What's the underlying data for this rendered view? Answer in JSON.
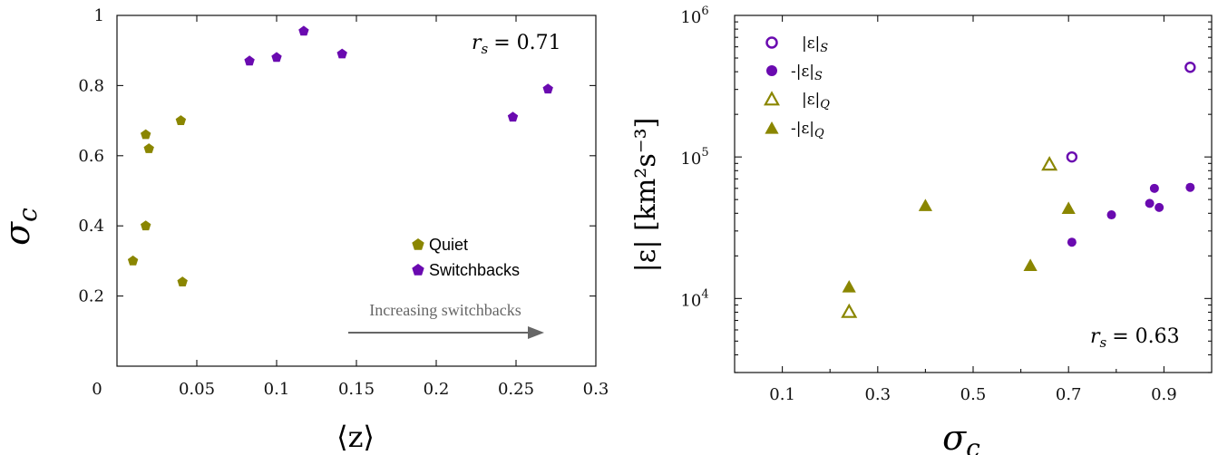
{
  "colors": {
    "quiet": "#8a8600",
    "switchbacks": "#6a0ab0",
    "arrow": "#666666",
    "axis": "#111111"
  },
  "chart_data": [
    {
      "type": "scatter",
      "xlabel": "⟨z⟩",
      "ylabel": "σ",
      "ylabel_sub": "c",
      "xlim": [
        0,
        0.3
      ],
      "ylim": [
        0,
        1
      ],
      "x_ticks": [
        "0",
        "0.05",
        "0.1",
        "0.15",
        "0.2",
        "0.25",
        "0.3"
      ],
      "y_ticks": [
        "0.2",
        "0.4",
        "0.6",
        "0.8",
        "1"
      ],
      "annotation_rs": "r",
      "annotation_rs_sub": "s",
      "annotation_rs_value": "= 0.71",
      "arrow_label": "Increasing switchbacks",
      "legend_position": "middle-right",
      "series": [
        {
          "name": "Quiet",
          "marker": "pentagon",
          "points": [
            [
              0.01,
              0.3
            ],
            [
              0.018,
              0.66
            ],
            [
              0.02,
              0.62
            ],
            [
              0.018,
              0.4
            ],
            [
              0.04,
              0.7
            ],
            [
              0.041,
              0.24
            ]
          ]
        },
        {
          "name": "Switchbacks",
          "marker": "pentagon",
          "points": [
            [
              0.083,
              0.87
            ],
            [
              0.1,
              0.88
            ],
            [
              0.117,
              0.955
            ],
            [
              0.141,
              0.89
            ],
            [
              0.248,
              0.71
            ],
            [
              0.27,
              0.79
            ]
          ]
        }
      ]
    },
    {
      "type": "scatter",
      "xlabel": "σ",
      "xlabel_sub": "c",
      "ylabel": "|ε| [km²s⁻³]",
      "xlim": [
        0,
        1
      ],
      "ylim": [
        3000,
        1000000
      ],
      "yscale": "log",
      "x_ticks": [
        "0.1",
        "0.3",
        "0.5",
        "0.7",
        "0.9"
      ],
      "y_ticks": [
        {
          "base": "10",
          "exp": "4"
        },
        {
          "base": "10",
          "exp": "5"
        },
        {
          "base": "10",
          "exp": "6"
        }
      ],
      "annotation_rs": "r",
      "annotation_rs_sub": "s",
      "annotation_rs_value": "= 0.63",
      "legend_position": "top-left",
      "series": [
        {
          "name": "|ε|S",
          "marker": "circle-open",
          "points": [
            [
              0.707,
              100000
            ],
            [
              0.955,
              430000
            ]
          ]
        },
        {
          "name": "-|ε|S",
          "marker": "circle-filled",
          "points": [
            [
              0.707,
              25000
            ],
            [
              0.79,
              39000
            ],
            [
              0.87,
              47000
            ],
            [
              0.88,
              60000
            ],
            [
              0.89,
              44000
            ],
            [
              0.955,
              61000
            ]
          ]
        },
        {
          "name": "|ε|Q",
          "marker": "triangle-open",
          "points": [
            [
              0.24,
              8000
            ],
            [
              0.66,
              88000
            ]
          ]
        },
        {
          "name": "-|ε|Q",
          "marker": "triangle-filled",
          "points": [
            [
              0.24,
              12000
            ],
            [
              0.4,
              45000
            ],
            [
              0.62,
              17000
            ],
            [
              0.7,
              43000
            ]
          ]
        }
      ],
      "legend": [
        {
          "abs": "|ε|",
          "sub": "S",
          "sign": ""
        },
        {
          "abs": "|ε|",
          "sub": "S",
          "sign": "-"
        },
        {
          "abs": "|ε|",
          "sub": "Q",
          "sign": ""
        },
        {
          "abs": "|ε|",
          "sub": "Q",
          "sign": "-"
        }
      ]
    }
  ]
}
